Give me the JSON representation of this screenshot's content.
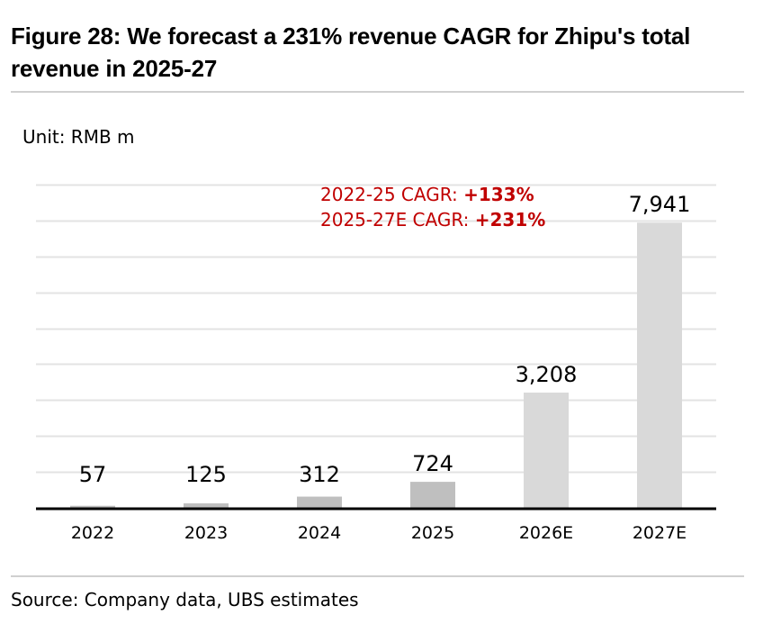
{
  "figure": {
    "title": "Figure 28: We forecast a 231% revenue CAGR for Zhipu's total revenue in 2025-27",
    "unit": "Unit: RMB m",
    "source": "Source: Company data, UBS estimates"
  },
  "annotations": [
    {
      "prefix": "2022-25 CAGR: ",
      "value": "+133%"
    },
    {
      "prefix": "2025-27E CAGR: ",
      "value": "+231%"
    }
  ],
  "colors": {
    "historical_bar": "#bfbfbf",
    "forecast_bar": "#d9d9d9",
    "annotation": "#c00000",
    "gridline": "#e3e3e3",
    "axis": "#000000"
  },
  "chart_data": {
    "type": "bar",
    "title": "We forecast a 231% revenue CAGR for Zhipu's total revenue in 2025-27",
    "xlabel": "",
    "ylabel": "RMB m",
    "categories": [
      "2022",
      "2023",
      "2024",
      "2025",
      "2026E",
      "2027E"
    ],
    "values": [
      57,
      125,
      312,
      724,
      3208,
      7941
    ],
    "data_labels": [
      "57",
      "125",
      "312",
      "724",
      "3,208",
      "7,941"
    ],
    "forecast": [
      false,
      false,
      false,
      false,
      true,
      true
    ],
    "ylim": [
      0,
      9000
    ],
    "gridline_step": 1000,
    "grid": true,
    "y_axis_visible": false,
    "legend": "none"
  }
}
